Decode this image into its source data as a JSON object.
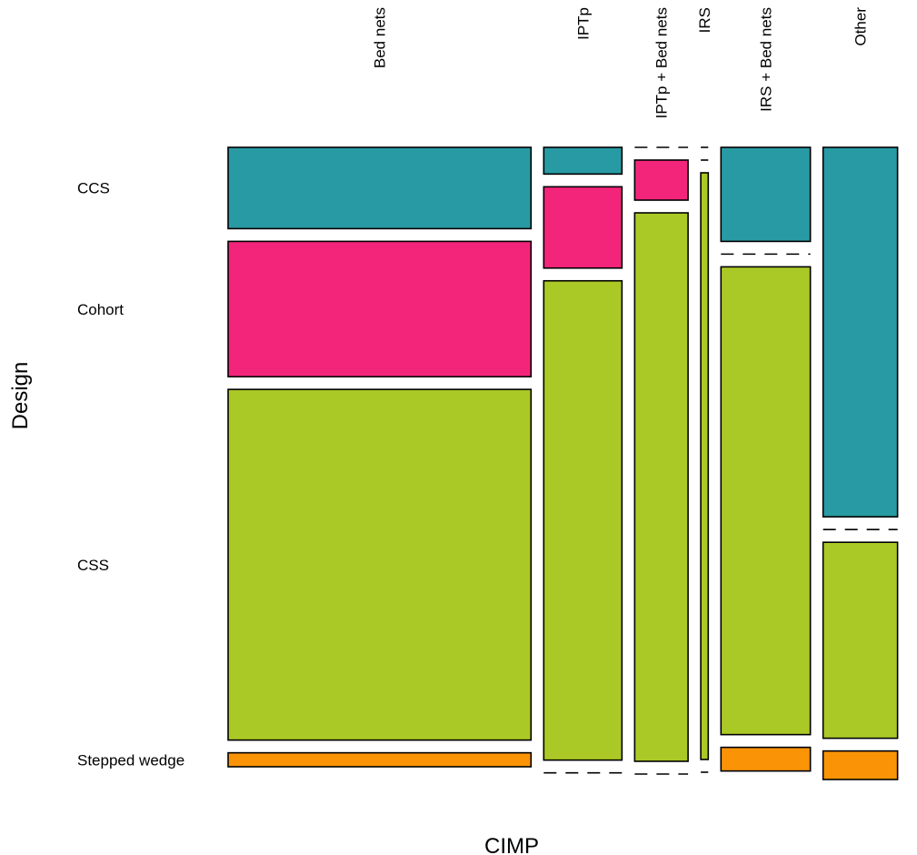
{
  "chart_data": {
    "type": "mosaic",
    "xlabel": "CIMP",
    "ylabel": "Design",
    "x_categories": [
      "Bed nets",
      "IPTp",
      "IPTp + Bed nets",
      "IRS",
      "IRS + Bed nets",
      "Other"
    ],
    "y_categories": [
      "CCS",
      "Cohort",
      "CSS",
      "Stepped wedge"
    ],
    "x_proportions": [
      0.488,
      0.126,
      0.086,
      0.012,
      0.144,
      0.12
    ],
    "cells": {
      "Bed nets": {
        "CCS": 0.134,
        "Cohort": 0.223,
        "CSS": 0.578,
        "Stepped wedge": 0.023
      },
      "IPTp": {
        "CCS": 0.044,
        "Cohort": 0.134,
        "CSS": 0.79,
        "Stepped wedge": 0.0
      },
      "IPTp + Bed nets": {
        "CCS": 0.0,
        "Cohort": 0.066,
        "CSS": 0.904,
        "Stepped wedge": 0.0
      },
      "IRS": {
        "CCS": 0.0,
        "Cohort": 0.0,
        "CSS": 0.967,
        "Stepped wedge": 0.0
      },
      "IRS + Bed nets": {
        "CCS": 0.155,
        "Cohort": 0.0,
        "CSS": 0.771,
        "Stepped wedge": 0.039
      },
      "Other": {
        "CCS": 0.609,
        "Cohort": 0.0,
        "CSS": 0.323,
        "Stepped wedge": 0.047
      }
    },
    "colors": {
      "CCS": "#289aa3",
      "Cohort": "#f3257a",
      "CSS": "#abc926",
      "Stepped wedge": "#fa9406"
    },
    "grid": false
  }
}
